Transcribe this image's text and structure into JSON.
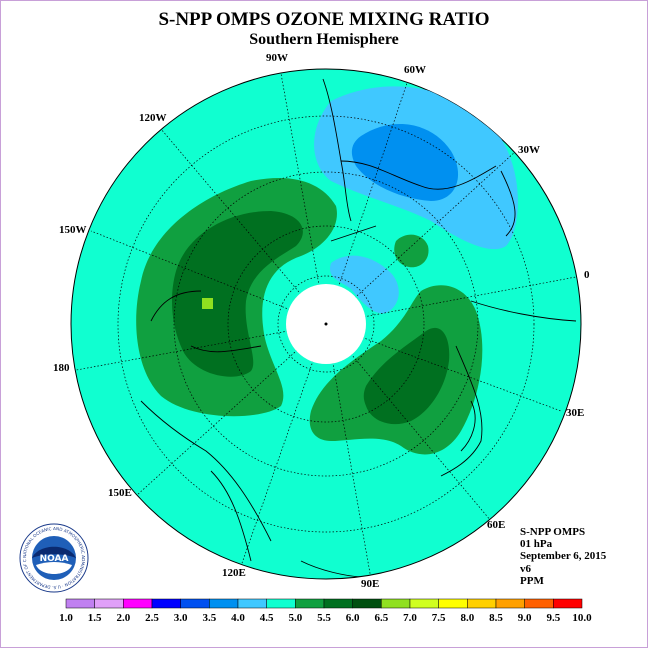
{
  "header": {
    "title": "S-NPP OMPS OZONE MIXING RATIO",
    "subtitle": "Southern Hemisphere"
  },
  "map": {
    "projection": "polar-stereographic-south",
    "background_level": "4.5-5.0",
    "longitude_labels": [
      "90W",
      "60W",
      "30W",
      "0",
      "30E",
      "60E",
      "90E",
      "120E",
      "150E",
      "180",
      "150W",
      "120W"
    ]
  },
  "info": {
    "instrument": "S-NPP OMPS",
    "level": "01 hPa",
    "date": "September 6, 2015",
    "version": "v6",
    "units": "PPM"
  },
  "colorbar": {
    "ticks": [
      "1.0",
      "1.5",
      "2.0",
      "2.5",
      "3.0",
      "3.5",
      "4.0",
      "4.5",
      "5.0",
      "5.5",
      "6.0",
      "6.5",
      "7.0",
      "7.5",
      "8.0",
      "8.5",
      "9.0",
      "9.5",
      "10.0"
    ],
    "colors": [
      "#c080f0",
      "#e0a0f8",
      "#ff00ff",
      "#0000ff",
      "#0050f0",
      "#0090f0",
      "#40c8ff",
      "#10ffd0",
      "#10a040",
      "#007020",
      "#005010",
      "#90e020",
      "#d0ff20",
      "#ffff00",
      "#ffd000",
      "#ffa000",
      "#ff6000",
      "#ff0000",
      "#905030"
    ]
  },
  "logo": {
    "text": "NOAA",
    "ring_text": "NATIONAL OCEANIC AND ATMOSPHERIC ADMINISTRATION · U.S. DEPARTMENT OF COMMERCE"
  }
}
